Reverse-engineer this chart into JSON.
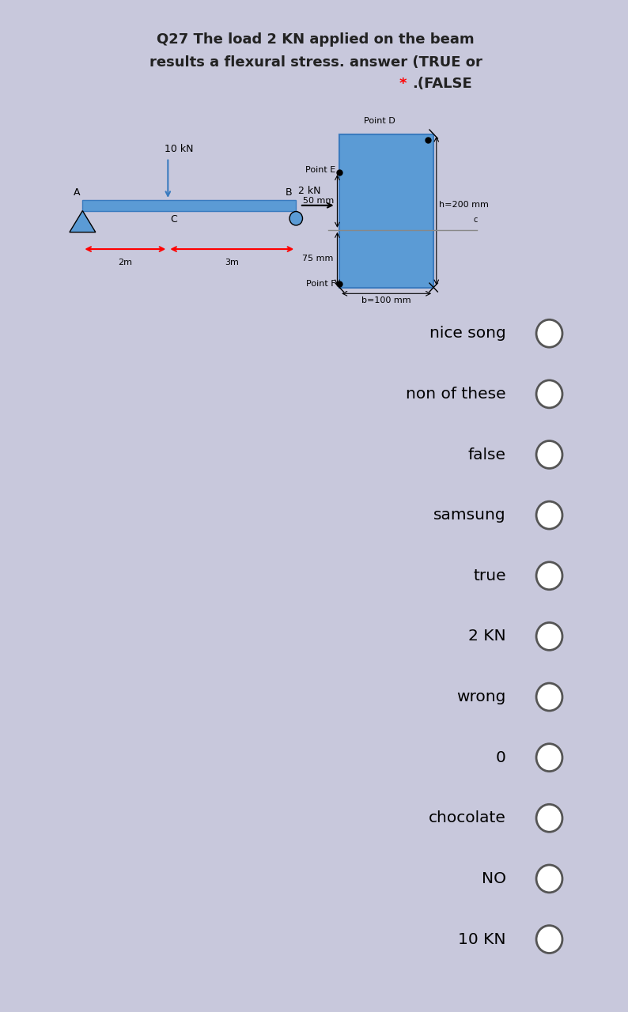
{
  "title_line1": "Q27 The load 2 KN applied on the beam",
  "title_line2": "results a flexural stress. answer (TRUE or",
  "bg_color": "#ffffff",
  "page_bg": "#c8c8dc",
  "beam_color": "#5b9bd5",
  "options": [
    "nice song",
    "non of these",
    "false",
    "samsung",
    "true",
    "2 KN",
    "wrong",
    "0",
    "chocolate",
    "NO",
    "10 KN"
  ],
  "circle_color": "#555555",
  "cross_section_fill": "#5b9bd5",
  "beam_edge": "#3a7bbf",
  "tri_color": "#5b9bd5"
}
